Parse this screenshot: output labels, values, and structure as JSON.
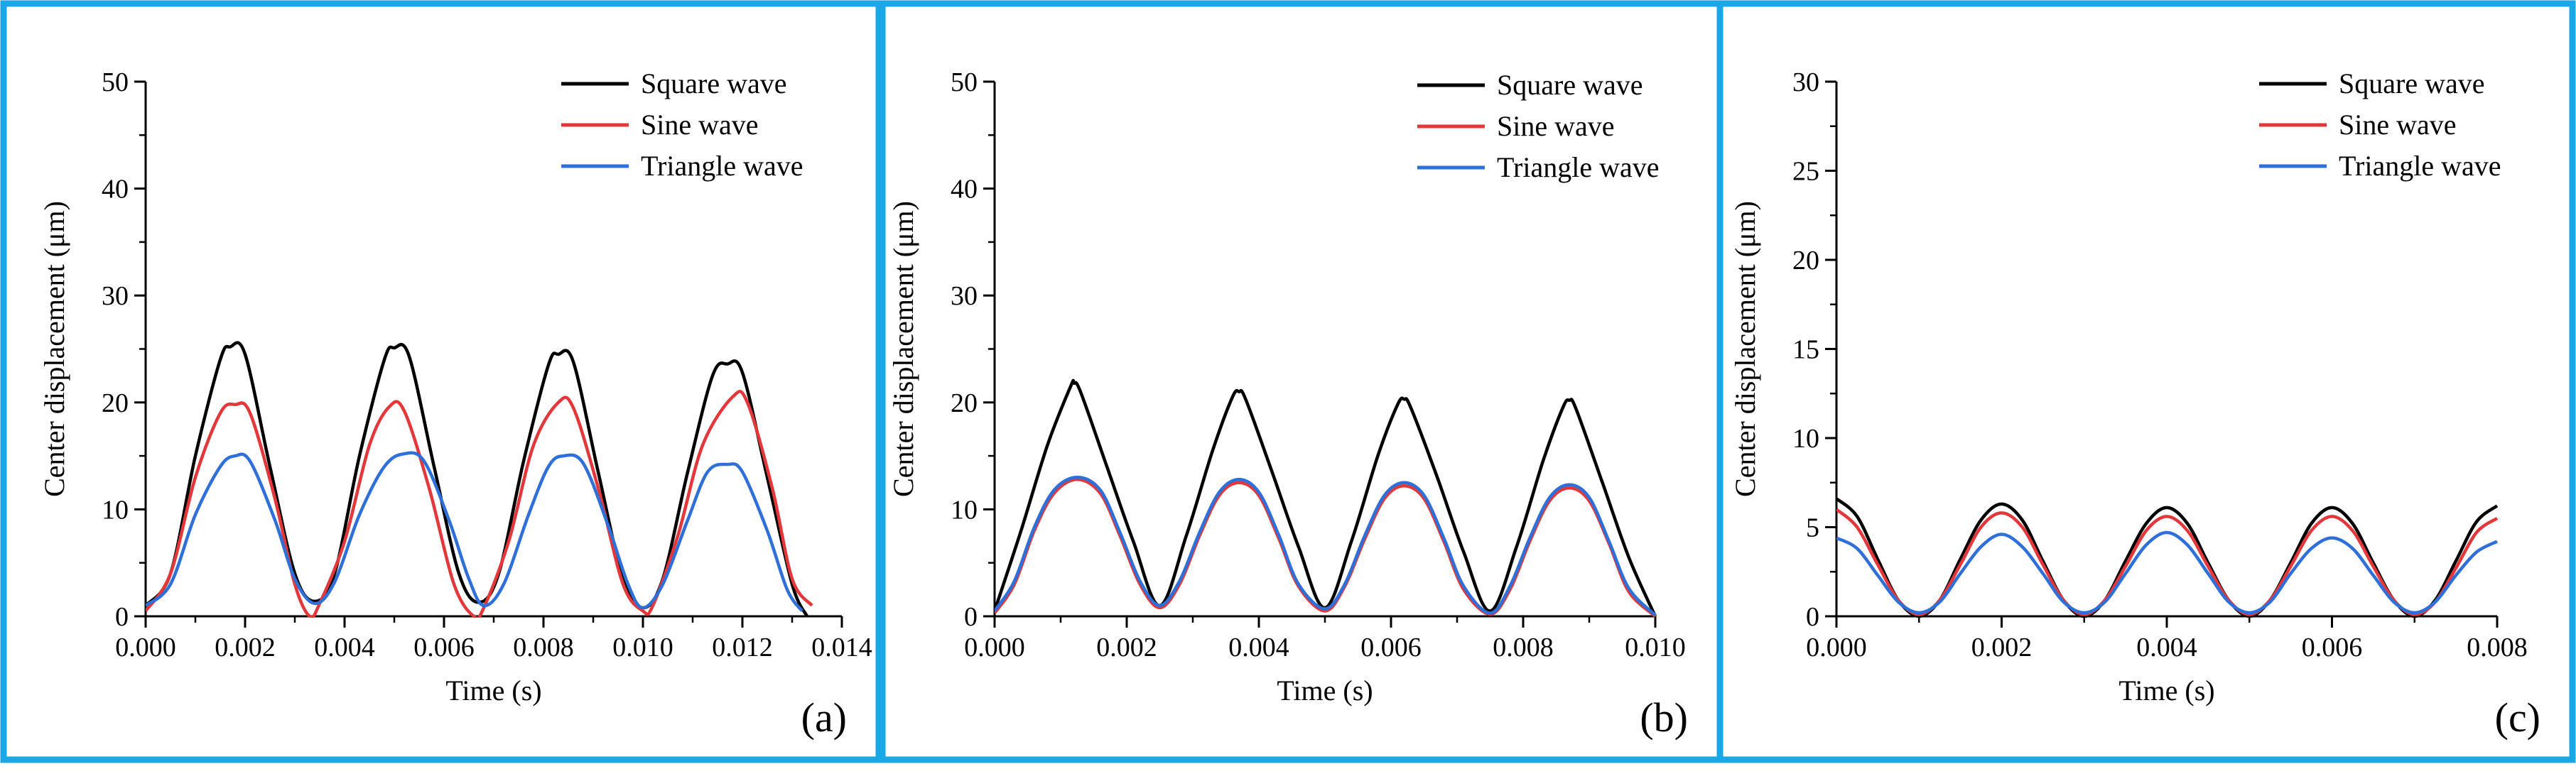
{
  "border_color": "#1aa7e6",
  "chart_data": [
    {
      "type": "line",
      "panel_label": "(a)",
      "xlabel": "Time (s)",
      "ylabel": "Center displacement (μm)",
      "xlim": [
        0,
        0.014
      ],
      "ylim": [
        0,
        50
      ],
      "xticks": [
        "0.000",
        "0.002",
        "0.004",
        "0.006",
        "0.008",
        "0.010",
        "0.012",
        "0.014"
      ],
      "yticks": [
        "0",
        "10",
        "20",
        "30",
        "40",
        "50"
      ],
      "legend_position": "top-right",
      "series": [
        {
          "name": "Square wave",
          "color": "#000000",
          "x": [
            0,
            0.0005,
            0.001,
            0.0015,
            0.0017,
            0.002,
            0.0025,
            0.003,
            0.0034,
            0.0038,
            0.0043,
            0.0048,
            0.005,
            0.0053,
            0.0058,
            0.0063,
            0.0067,
            0.0071,
            0.0076,
            0.0081,
            0.0083,
            0.0086,
            0.0091,
            0.0096,
            0.01,
            0.0104,
            0.0109,
            0.0114,
            0.0117,
            0.012,
            0.0125,
            0.013,
            0.0133
          ],
          "y": [
            1,
            4,
            15,
            24,
            25.2,
            24.5,
            14,
            4,
            1.4,
            4,
            15,
            24,
            25.1,
            24.3,
            14,
            4,
            1.3,
            4,
            14.5,
            23.5,
            24.5,
            23.8,
            13.5,
            3.5,
            0.8,
            3.5,
            13.5,
            22.5,
            23.6,
            22.8,
            13,
            3,
            0
          ]
        },
        {
          "name": "Sine wave",
          "color": "#e2383b",
          "x": [
            0,
            0.0005,
            0.001,
            0.0015,
            0.0018,
            0.0021,
            0.0026,
            0.003,
            0.0033,
            0.0035,
            0.004,
            0.0045,
            0.0049,
            0.0052,
            0.0057,
            0.0062,
            0.0066,
            0.0068,
            0.0073,
            0.0078,
            0.0083,
            0.0086,
            0.0091,
            0.0096,
            0.01,
            0.0102,
            0.0107,
            0.0112,
            0.0118,
            0.0121,
            0.0126,
            0.013,
            0.0134
          ],
          "y": [
            0.5,
            4,
            13,
            19,
            19.8,
            19,
            11,
            3,
            0,
            1.2,
            7,
            16,
            19.6,
            19.2,
            12,
            3,
            0,
            0.8,
            7,
            16,
            20,
            19.5,
            12,
            3,
            0.5,
            1,
            7.5,
            16,
            20.5,
            20,
            12,
            3.5,
            1
          ]
        },
        {
          "name": "Triangle wave",
          "color": "#2f6fd8",
          "x": [
            0,
            0.0005,
            0.001,
            0.0015,
            0.0018,
            0.0021,
            0.0026,
            0.003,
            0.0034,
            0.0038,
            0.0043,
            0.0048,
            0.0052,
            0.0056,
            0.0061,
            0.0065,
            0.0068,
            0.0072,
            0.0077,
            0.0081,
            0.0084,
            0.0088,
            0.0093,
            0.0097,
            0.01,
            0.0104,
            0.0109,
            0.0113,
            0.0117,
            0.012,
            0.0125,
            0.0129,
            0.0132
          ],
          "y": [
            1,
            3,
            9.5,
            14,
            15,
            14.5,
            9,
            3.5,
            1.2,
            3.2,
            9.5,
            14,
            15.2,
            14.5,
            9,
            3.5,
            1,
            3,
            9.5,
            14,
            15,
            14.3,
            8.5,
            3,
            0.8,
            3,
            9,
            13.5,
            14.2,
            13.5,
            8,
            2.5,
            0.5
          ]
        }
      ]
    },
    {
      "type": "line",
      "panel_label": "(b)",
      "xlabel": "Time (s)",
      "ylabel": "Center displacement (μm)",
      "xlim": [
        0,
        0.01
      ],
      "ylim": [
        0,
        50
      ],
      "xticks": [
        "0.000",
        "0.002",
        "0.004",
        "0.006",
        "0.008",
        "0.010"
      ],
      "yticks": [
        "0",
        "10",
        "20",
        "30",
        "40",
        "50"
      ],
      "legend_position": "top-right",
      "series": [
        {
          "name": "Square wave",
          "color": "#000000",
          "x": [
            0,
            0.0004,
            0.0008,
            0.00115,
            0.0012,
            0.0013,
            0.0017,
            0.0021,
            0.0025,
            0.0029,
            0.0033,
            0.0036,
            0.0037,
            0.0038,
            0.0042,
            0.0046,
            0.005,
            0.0054,
            0.0058,
            0.0061,
            0.0062,
            0.0063,
            0.0067,
            0.0071,
            0.0075,
            0.0079,
            0.0083,
            0.0086,
            0.0087,
            0.0088,
            0.0092,
            0.0096,
            0.01
          ],
          "y": [
            0.5,
            8,
            16,
            21.5,
            21.8,
            21,
            14,
            7,
            1,
            7.5,
            15.5,
            20.5,
            21,
            20.3,
            13.5,
            6.5,
            0.8,
            7,
            15,
            19.8,
            20.3,
            19.5,
            13,
            6,
            0.5,
            6.5,
            14.5,
            19.5,
            20.2,
            19.4,
            12.5,
            5.5,
            0
          ]
        },
        {
          "name": "Sine wave",
          "color": "#e2383b",
          "x": [
            0,
            0.0003,
            0.0006,
            0.0009,
            0.00125,
            0.0016,
            0.0019,
            0.0022,
            0.0025,
            0.0028,
            0.0031,
            0.0034,
            0.0037,
            0.004,
            0.0043,
            0.0046,
            0.005,
            0.0053,
            0.0056,
            0.0059,
            0.0062,
            0.0065,
            0.0068,
            0.0071,
            0.0075,
            0.0078,
            0.0081,
            0.0084,
            0.0087,
            0.009,
            0.0093,
            0.0096,
            0.01
          ],
          "y": [
            0.3,
            3,
            8,
            11.5,
            12.8,
            11.5,
            7.5,
            3,
            0.8,
            3,
            7.5,
            11.3,
            12.5,
            11.3,
            7.3,
            2.8,
            0.5,
            2.8,
            7.2,
            11,
            12.2,
            11,
            7,
            2.5,
            0.2,
            2.5,
            7,
            10.8,
            12,
            10.8,
            6.8,
            2.3,
            0
          ]
        },
        {
          "name": "Triangle wave",
          "color": "#2f6fd8",
          "x": [
            0,
            0.0003,
            0.0006,
            0.0009,
            0.00125,
            0.0016,
            0.0019,
            0.0022,
            0.0025,
            0.0028,
            0.0031,
            0.0034,
            0.0037,
            0.004,
            0.0043,
            0.0046,
            0.005,
            0.0053,
            0.0056,
            0.0059,
            0.0062,
            0.0065,
            0.0068,
            0.0071,
            0.0075,
            0.0078,
            0.0081,
            0.0084,
            0.0087,
            0.009,
            0.0093,
            0.0096,
            0.01
          ],
          "y": [
            0.5,
            3.3,
            8.3,
            11.8,
            13,
            11.8,
            7.8,
            3.3,
            1,
            3.3,
            7.8,
            11.6,
            12.8,
            11.6,
            7.6,
            3,
            0.7,
            3,
            7.5,
            11.3,
            12.5,
            11.3,
            7.3,
            2.8,
            0.3,
            2.8,
            7.3,
            11.1,
            12.3,
            11.1,
            7,
            2.6,
            0.1
          ]
        }
      ]
    },
    {
      "type": "line",
      "panel_label": "(c)",
      "xlabel": "Time (s)",
      "ylabel": "Center displacement (μm)",
      "xlim": [
        0,
        0.008
      ],
      "ylim": [
        0,
        30
      ],
      "xticks": [
        "0.000",
        "0.002",
        "0.004",
        "0.006",
        "0.008"
      ],
      "yticks": [
        "0",
        "5",
        "10",
        "15",
        "20",
        "25",
        "30"
      ],
      "legend_position": "top-right",
      "series": [
        {
          "name": "Square wave",
          "color": "#000000",
          "x": [
            0,
            0.00025,
            0.0005,
            0.00075,
            0.001,
            0.00125,
            0.0015,
            0.00175,
            0.002,
            0.00225,
            0.0025,
            0.00275,
            0.003,
            0.00325,
            0.0035,
            0.00375,
            0.004,
            0.00425,
            0.0045,
            0.00475,
            0.005,
            0.00525,
            0.0055,
            0.00575,
            0.006,
            0.00625,
            0.0065,
            0.00675,
            0.007,
            0.00725,
            0.0075,
            0.00775,
            0.008
          ],
          "y": [
            6.6,
            5.6,
            3.2,
            0.9,
            0,
            0.9,
            3.2,
            5.4,
            6.3,
            5.4,
            3.1,
            0.9,
            0,
            0.9,
            3.1,
            5.2,
            6.1,
            5.2,
            3.0,
            0.9,
            0,
            0.9,
            3.0,
            5.2,
            6.1,
            5.2,
            3.0,
            0.9,
            0,
            0.9,
            3.1,
            5.3,
            6.2
          ]
        },
        {
          "name": "Sine wave",
          "color": "#e2383b",
          "x": [
            0,
            0.00025,
            0.0005,
            0.00075,
            0.001,
            0.00125,
            0.0015,
            0.00175,
            0.002,
            0.00225,
            0.0025,
            0.00275,
            0.003,
            0.00325,
            0.0035,
            0.00375,
            0.004,
            0.00425,
            0.0045,
            0.00475,
            0.005,
            0.00525,
            0.0055,
            0.00575,
            0.006,
            0.00625,
            0.0065,
            0.00675,
            0.007,
            0.00725,
            0.0075,
            0.00775,
            0.008
          ],
          "y": [
            6.0,
            5.0,
            2.9,
            0.9,
            0.1,
            0.9,
            2.9,
            5.0,
            5.8,
            5.0,
            2.9,
            0.9,
            0.1,
            0.9,
            2.8,
            4.8,
            5.6,
            4.8,
            2.8,
            0.9,
            0.1,
            0.9,
            2.8,
            4.8,
            5.6,
            4.8,
            2.8,
            0.9,
            0.1,
            0.8,
            2.7,
            4.7,
            5.5
          ]
        },
        {
          "name": "Triangle wave",
          "color": "#2f6fd8",
          "x": [
            0,
            0.00025,
            0.0005,
            0.00075,
            0.001,
            0.00125,
            0.0015,
            0.00175,
            0.002,
            0.00225,
            0.0025,
            0.00275,
            0.003,
            0.00325,
            0.0035,
            0.00375,
            0.004,
            0.00425,
            0.0045,
            0.00475,
            0.005,
            0.00525,
            0.0055,
            0.00575,
            0.006,
            0.00625,
            0.0065,
            0.00675,
            0.007,
            0.00725,
            0.0075,
            0.00775,
            0.008
          ],
          "y": [
            4.4,
            3.8,
            2.3,
            0.8,
            0.2,
            0.8,
            2.4,
            3.9,
            4.6,
            3.9,
            2.4,
            0.8,
            0.2,
            0.8,
            2.4,
            4.0,
            4.7,
            4.0,
            2.4,
            0.8,
            0.2,
            0.8,
            2.4,
            3.8,
            4.4,
            3.8,
            2.3,
            0.8,
            0.2,
            0.8,
            2.3,
            3.6,
            4.2
          ]
        }
      ]
    }
  ]
}
